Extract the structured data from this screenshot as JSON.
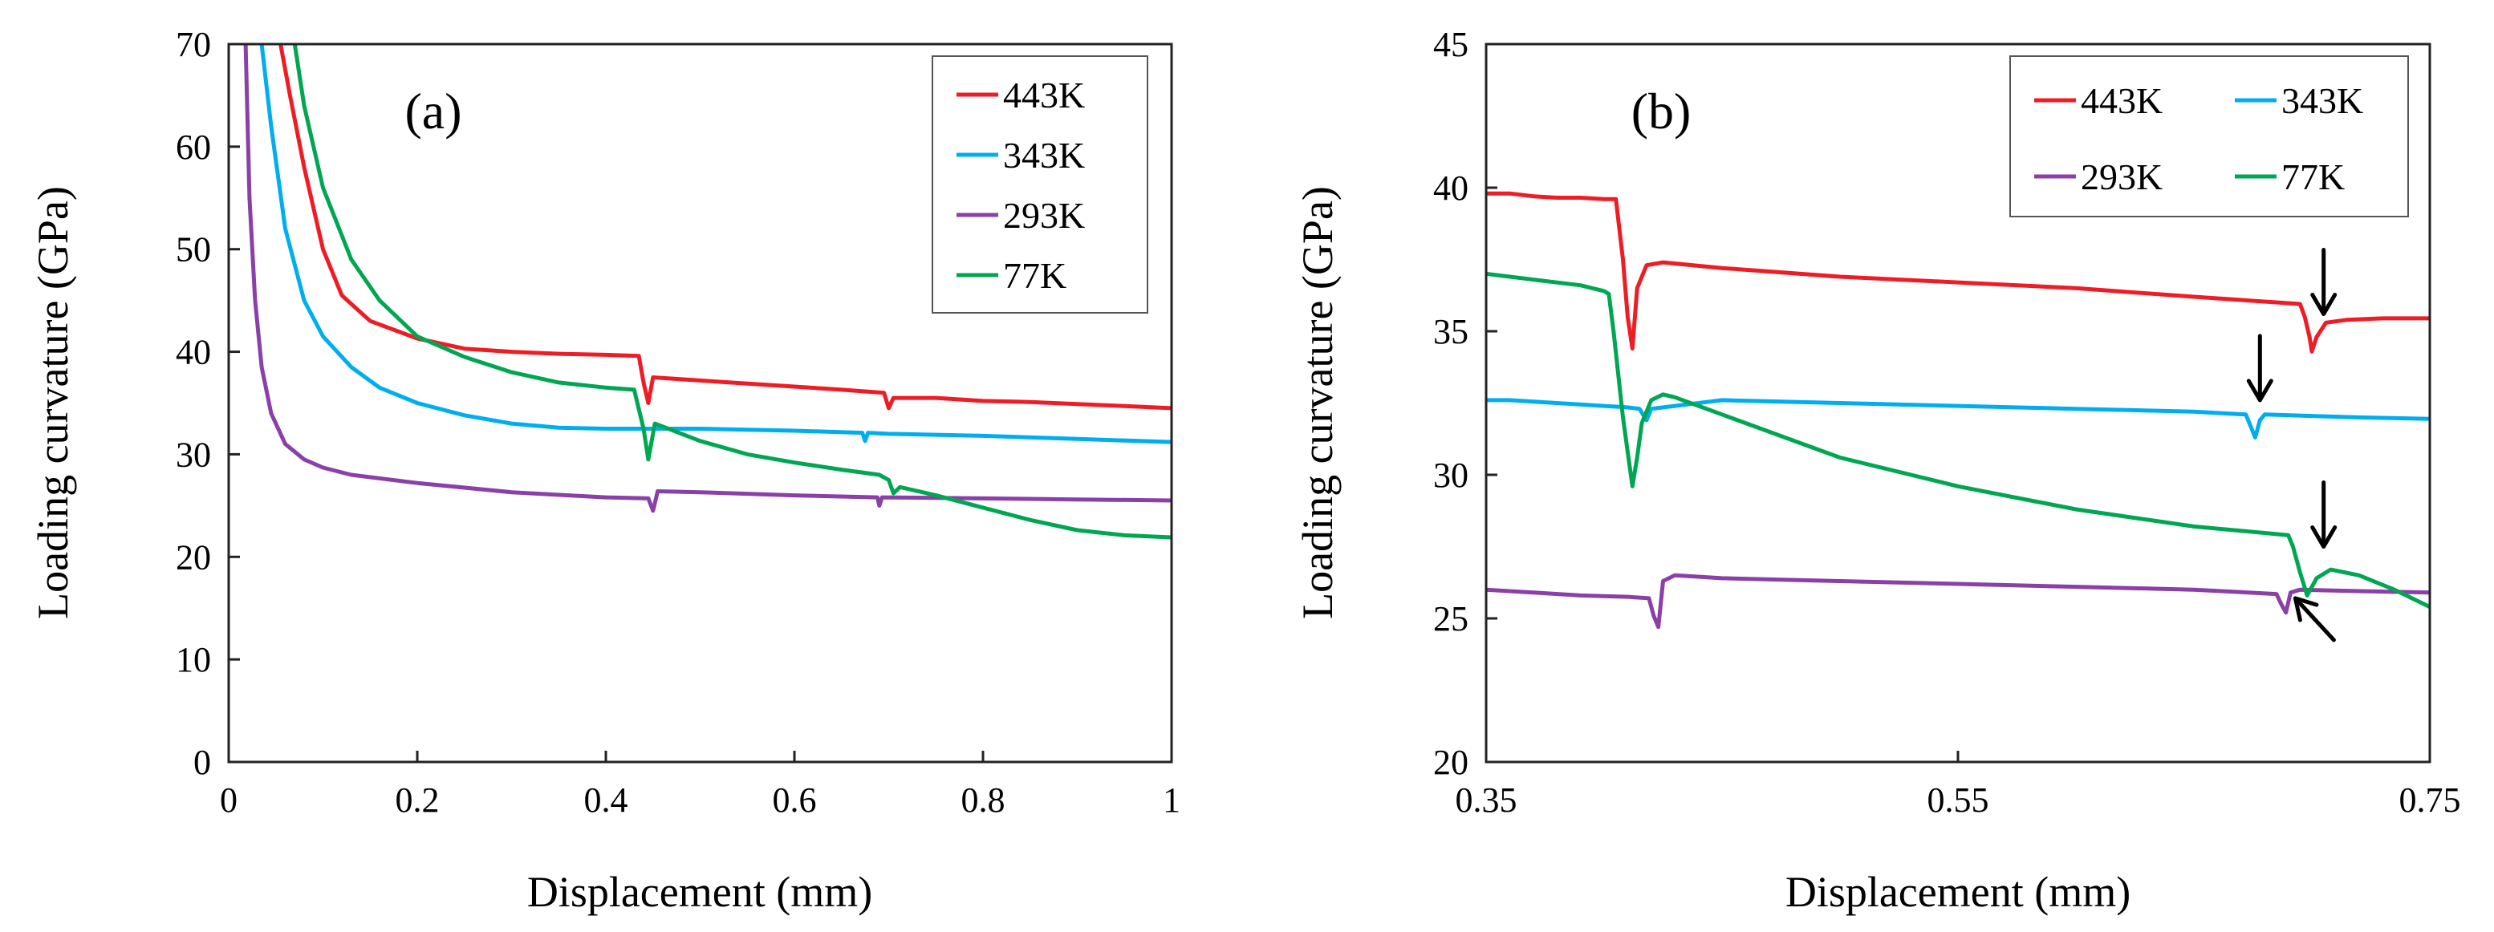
{
  "chart_data": [
    {
      "panel": "a",
      "type": "line",
      "title": "(a)",
      "xlabel": "Displacement (mm)",
      "ylabel": "Loading curvature (GPa)",
      "xlim": [
        0,
        1
      ],
      "ylim": [
        0,
        70
      ],
      "xticks": [
        0,
        0.2,
        0.4,
        0.6,
        0.8,
        1
      ],
      "xtick_labels": [
        "0",
        "0.2",
        "0.4",
        "0.6",
        "0.8",
        "1"
      ],
      "yticks": [
        0,
        10,
        20,
        30,
        40,
        50,
        60,
        70
      ],
      "ytick_labels": [
        "0",
        "10",
        "20",
        "30",
        "40",
        "50",
        "60",
        "70"
      ],
      "grid": false,
      "legend_position": "top-right",
      "legend_columns": 1,
      "series": [
        {
          "name": "443K",
          "color": "#ee1c25",
          "points": [
            [
              0.055,
              70
            ],
            [
              0.065,
              65
            ],
            [
              0.08,
              58
            ],
            [
              0.1,
              50
            ],
            [
              0.12,
              45.5
            ],
            [
              0.15,
              43
            ],
            [
              0.2,
              41.3
            ],
            [
              0.25,
              40.3
            ],
            [
              0.3,
              40
            ],
            [
              0.35,
              39.8
            ],
            [
              0.4,
              39.7
            ],
            [
              0.435,
              39.6
            ],
            [
              0.44,
              37
            ],
            [
              0.445,
              35
            ],
            [
              0.45,
              37.5
            ],
            [
              0.5,
              37.2
            ],
            [
              0.55,
              36.9
            ],
            [
              0.6,
              36.6
            ],
            [
              0.65,
              36.3
            ],
            [
              0.695,
              36
            ],
            [
              0.7,
              34.5
            ],
            [
              0.705,
              35.5
            ],
            [
              0.75,
              35.5
            ],
            [
              0.8,
              35.2
            ],
            [
              0.85,
              35.1
            ],
            [
              0.9,
              34.9
            ],
            [
              0.95,
              34.7
            ],
            [
              1.0,
              34.5
            ]
          ]
        },
        {
          "name": "343K",
          "color": "#00aeef",
          "points": [
            [
              0.035,
              70
            ],
            [
              0.045,
              62
            ],
            [
              0.06,
              52
            ],
            [
              0.08,
              45
            ],
            [
              0.1,
              41.5
            ],
            [
              0.13,
              38.5
            ],
            [
              0.16,
              36.5
            ],
            [
              0.2,
              35
            ],
            [
              0.25,
              33.8
            ],
            [
              0.3,
              33
            ],
            [
              0.35,
              32.6
            ],
            [
              0.4,
              32.5
            ],
            [
              0.5,
              32.5
            ],
            [
              0.6,
              32.3
            ],
            [
              0.672,
              32.1
            ],
            [
              0.675,
              31.3
            ],
            [
              0.678,
              32.1
            ],
            [
              0.7,
              32
            ],
            [
              0.8,
              31.8
            ],
            [
              0.9,
              31.5
            ],
            [
              1.0,
              31.2
            ]
          ]
        },
        {
          "name": "293K",
          "color": "#8b3fa8",
          "points": [
            [
              0.018,
              70
            ],
            [
              0.022,
              55
            ],
            [
              0.028,
              45
            ],
            [
              0.035,
              38.5
            ],
            [
              0.045,
              34
            ],
            [
              0.06,
              31
            ],
            [
              0.08,
              29.5
            ],
            [
              0.1,
              28.7
            ],
            [
              0.13,
              28
            ],
            [
              0.2,
              27.2
            ],
            [
              0.3,
              26.3
            ],
            [
              0.4,
              25.8
            ],
            [
              0.445,
              25.7
            ],
            [
              0.45,
              24.5
            ],
            [
              0.455,
              26.4
            ],
            [
              0.5,
              26.3
            ],
            [
              0.6,
              26
            ],
            [
              0.688,
              25.8
            ],
            [
              0.69,
              25
            ],
            [
              0.693,
              25.8
            ],
            [
              0.8,
              25.7
            ],
            [
              0.9,
              25.6
            ],
            [
              1.0,
              25.5
            ]
          ]
        },
        {
          "name": "77K",
          "color": "#00a651",
          "points": [
            [
              0.07,
              70
            ],
            [
              0.08,
              64
            ],
            [
              0.1,
              56
            ],
            [
              0.13,
              49
            ],
            [
              0.16,
              45
            ],
            [
              0.2,
              41.5
            ],
            [
              0.25,
              39.5
            ],
            [
              0.3,
              38
            ],
            [
              0.35,
              37
            ],
            [
              0.4,
              36.5
            ],
            [
              0.43,
              36.3
            ],
            [
              0.44,
              32.5
            ],
            [
              0.445,
              29.5
            ],
            [
              0.452,
              33
            ],
            [
              0.5,
              31.3
            ],
            [
              0.55,
              30
            ],
            [
              0.6,
              29.2
            ],
            [
              0.65,
              28.5
            ],
            [
              0.69,
              28
            ],
            [
              0.7,
              27.5
            ],
            [
              0.705,
              26.2
            ],
            [
              0.712,
              26.8
            ],
            [
              0.75,
              26
            ],
            [
              0.8,
              24.8
            ],
            [
              0.85,
              23.6
            ],
            [
              0.9,
              22.6
            ],
            [
              0.95,
              22.1
            ],
            [
              1.0,
              21.9
            ]
          ]
        }
      ]
    },
    {
      "panel": "b",
      "type": "line",
      "title": "(b)",
      "xlabel": "Displacement (mm)",
      "ylabel": "Loading curvature (GPa)",
      "xlim": [
        0.35,
        0.75
      ],
      "ylim": [
        20,
        45
      ],
      "xticks": [
        0.35,
        0.55,
        0.75
      ],
      "xtick_labels": [
        "0.35",
        "0.55",
        "0.75"
      ],
      "yticks": [
        20,
        25,
        30,
        35,
        40,
        45
      ],
      "ytick_labels": [
        "20",
        "25",
        "30",
        "35",
        "40",
        "45"
      ],
      "grid": false,
      "legend_position": "top-right",
      "legend_columns": 2,
      "annotations": [
        {
          "type": "arrow",
          "direction": "down",
          "x": 0.705,
          "y": 35.6,
          "target_series": "443K"
        },
        {
          "type": "arrow",
          "direction": "down",
          "x": 0.678,
          "y": 32.6,
          "target_series": "343K"
        },
        {
          "type": "arrow",
          "direction": "down",
          "x": 0.705,
          "y": 27.5,
          "target_series": "77K"
        },
        {
          "type": "arrow",
          "direction": "up-left",
          "x": 0.693,
          "y": 25.7,
          "target_series": "293K"
        }
      ],
      "series": [
        {
          "name": "443K",
          "color": "#ee1c25",
          "points": [
            [
              0.35,
              39.8
            ],
            [
              0.36,
              39.8
            ],
            [
              0.37,
              39.7
            ],
            [
              0.38,
              39.65
            ],
            [
              0.39,
              39.65
            ],
            [
              0.4,
              39.6
            ],
            [
              0.405,
              39.6
            ],
            [
              0.408,
              37.5
            ],
            [
              0.41,
              35.5
            ],
            [
              0.412,
              34.4
            ],
            [
              0.414,
              36.5
            ],
            [
              0.418,
              37.3
            ],
            [
              0.425,
              37.4
            ],
            [
              0.45,
              37.2
            ],
            [
              0.5,
              36.9
            ],
            [
              0.55,
              36.7
            ],
            [
              0.6,
              36.5
            ],
            [
              0.65,
              36.2
            ],
            [
              0.695,
              35.95
            ],
            [
              0.697,
              35.5
            ],
            [
              0.699,
              34.8
            ],
            [
              0.7,
              34.3
            ],
            [
              0.702,
              34.8
            ],
            [
              0.706,
              35.3
            ],
            [
              0.715,
              35.4
            ],
            [
              0.73,
              35.45
            ],
            [
              0.75,
              35.45
            ]
          ]
        },
        {
          "name": "343K",
          "color": "#00aeef",
          "points": [
            [
              0.35,
              32.6
            ],
            [
              0.36,
              32.6
            ],
            [
              0.38,
              32.5
            ],
            [
              0.4,
              32.4
            ],
            [
              0.41,
              32.35
            ],
            [
              0.415,
              32.3
            ],
            [
              0.418,
              31.9
            ],
            [
              0.42,
              32.3
            ],
            [
              0.45,
              32.6
            ],
            [
              0.5,
              32.5
            ],
            [
              0.55,
              32.4
            ],
            [
              0.6,
              32.3
            ],
            [
              0.65,
              32.2
            ],
            [
              0.672,
              32.1
            ],
            [
              0.674,
              31.7
            ],
            [
              0.676,
              31.3
            ],
            [
              0.678,
              31.9
            ],
            [
              0.68,
              32.1
            ],
            [
              0.7,
              32.05
            ],
            [
              0.72,
              32.0
            ],
            [
              0.75,
              31.95
            ]
          ]
        },
        {
          "name": "293K",
          "color": "#8b3fa8",
          "points": [
            [
              0.35,
              26
            ],
            [
              0.37,
              25.9
            ],
            [
              0.39,
              25.8
            ],
            [
              0.41,
              25.75
            ],
            [
              0.419,
              25.7
            ],
            [
              0.421,
              25.1
            ],
            [
              0.423,
              24.7
            ],
            [
              0.425,
              26.3
            ],
            [
              0.43,
              26.5
            ],
            [
              0.45,
              26.4
            ],
            [
              0.5,
              26.3
            ],
            [
              0.55,
              26.2
            ],
            [
              0.6,
              26.1
            ],
            [
              0.65,
              26
            ],
            [
              0.685,
              25.85
            ],
            [
              0.687,
              25.5
            ],
            [
              0.689,
              25.2
            ],
            [
              0.691,
              25.9
            ],
            [
              0.695,
              26
            ],
            [
              0.72,
              25.95
            ],
            [
              0.75,
              25.9
            ]
          ]
        },
        {
          "name": "77K",
          "color": "#00a651",
          "points": [
            [
              0.35,
              37
            ],
            [
              0.37,
              36.8
            ],
            [
              0.39,
              36.6
            ],
            [
              0.4,
              36.4
            ],
            [
              0.402,
              36.3
            ],
            [
              0.404,
              35
            ],
            [
              0.408,
              32
            ],
            [
              0.412,
              29.6
            ],
            [
              0.414,
              30.6
            ],
            [
              0.416,
              31.8
            ],
            [
              0.42,
              32.6
            ],
            [
              0.425,
              32.8
            ],
            [
              0.43,
              32.7
            ],
            [
              0.45,
              32.1
            ],
            [
              0.5,
              30.6
            ],
            [
              0.55,
              29.6
            ],
            [
              0.6,
              28.8
            ],
            [
              0.65,
              28.2
            ],
            [
              0.69,
              27.9
            ],
            [
              0.692,
              27.5
            ],
            [
              0.695,
              26.6
            ],
            [
              0.698,
              25.8
            ],
            [
              0.702,
              26.4
            ],
            [
              0.708,
              26.7
            ],
            [
              0.72,
              26.5
            ],
            [
              0.735,
              26
            ],
            [
              0.75,
              25.4
            ]
          ]
        }
      ]
    }
  ]
}
